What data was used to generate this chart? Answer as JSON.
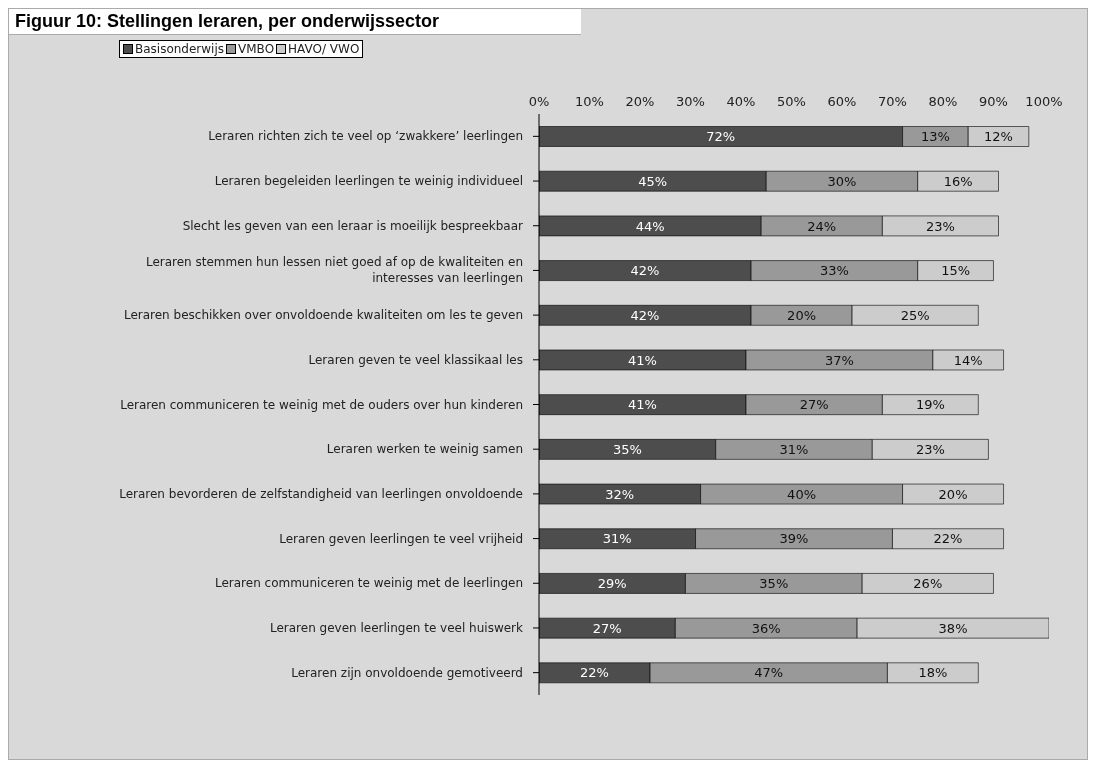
{
  "chart_data": {
    "type": "bar",
    "orientation": "horizontal",
    "stacked": true,
    "title": "Figuur 10: Stellingen leraren, per onderwijssector",
    "categories": [
      "Leraren richten zich te veel op ‘zwakkere’ leerlingen",
      "Leraren begeleiden leerlingen te weinig individueel",
      "Slecht les geven van een leraar is moeilijk bespreekbaar",
      "Leraren stemmen hun lessen niet goed af op de kwaliteiten en interesses van leerlingen",
      "Leraren beschikken over onvoldoende kwaliteiten om les te geven",
      "Leraren geven te veel klassikaal les",
      "Leraren communiceren te weinig met de ouders over hun kinderen",
      "Leraren werken te weinig samen",
      "Leraren bevorderen de zelfstandigheid van leerlingen onvoldoende",
      "Leraren geven leerlingen te veel vrijheid",
      "Leraren communiceren te weinig met de leerlingen",
      "Leraren geven leerlingen te veel huiswerk",
      "Leraren zijn onvoldoende gemotiveerd"
    ],
    "series": [
      {
        "name": "Basisonderwijs",
        "color": "#4d4d4d",
        "values": [
          72,
          45,
          44,
          42,
          42,
          41,
          41,
          35,
          32,
          31,
          29,
          27,
          22
        ],
        "value_labels": [
          "72%",
          "45%",
          "44%",
          "42%",
          "42%",
          "41%",
          "41%",
          "35%",
          "32%",
          "31%",
          "29%",
          "27%",
          "22%"
        ]
      },
      {
        "name": "VMBO",
        "color": "#999999",
        "values": [
          13,
          30,
          24,
          33,
          20,
          37,
          27,
          31,
          40,
          39,
          35,
          36,
          47
        ],
        "value_labels": [
          "13%",
          "30%",
          "24%",
          "33%",
          "20%",
          "37%",
          "27%",
          "31%",
          "40%",
          "39%",
          "35%",
          "36%",
          "47%"
        ]
      },
      {
        "name": "HAVO/ VWO",
        "color": "#cccccc",
        "values": [
          12,
          16,
          23,
          15,
          25,
          14,
          19,
          23,
          20,
          22,
          26,
          38,
          18
        ],
        "value_labels": [
          "12%",
          "16%",
          "23%",
          "15%",
          "25%",
          "14%",
          "19%",
          "23%",
          "20%",
          "22%",
          "26%",
          "38%",
          "18%"
        ]
      }
    ],
    "xlim": [
      0,
      101
    ],
    "xticks": [
      {
        "value": 0,
        "label": "0%"
      },
      {
        "value": 10,
        "label": "10%"
      },
      {
        "value": 20,
        "label": "20%"
      },
      {
        "value": 30,
        "label": "30%"
      },
      {
        "value": 40,
        "label": "40%"
      },
      {
        "value": 50,
        "label": "50%"
      },
      {
        "value": 60,
        "label": "60%"
      },
      {
        "value": 70,
        "label": "70%"
      },
      {
        "value": 80,
        "label": "80%"
      },
      {
        "value": 90,
        "label": "90%"
      },
      {
        "value": 100,
        "label": "100%"
      }
    ],
    "grid": false,
    "legend": "top left"
  }
}
